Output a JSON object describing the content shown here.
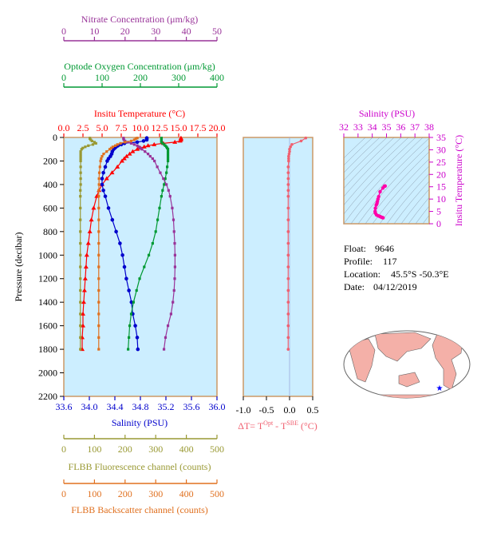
{
  "float_info": {
    "float_label": "Float:",
    "float_value": "9646",
    "profile_label": "Profile:",
    "profile_value": "117",
    "location_label": "Location:",
    "location_value": "45.5°S  -50.3°E",
    "date_label": "Date:",
    "date_value": "04/12/2019"
  },
  "colors": {
    "temperature": "#ff0000",
    "salinity": "#0000cc",
    "oxygen": "#009933",
    "nitrate": "#993399",
    "fluorescence": "#999933",
    "backscatter": "#e0701f",
    "delta_t": "#f06070",
    "ts_curve": "#ff00aa",
    "plot_bg": "#cceeff",
    "axis": "#cc9966"
  },
  "chart_data": [
    {
      "type": "line",
      "panel": "main_profiles",
      "ylabel": "Pressure (decibar)",
      "ylim": [
        2200,
        0
      ],
      "yticks": [
        0,
        200,
        400,
        600,
        800,
        1000,
        1200,
        1400,
        1600,
        1800,
        2000,
        2200
      ],
      "axes": {
        "nitrate": {
          "label": "Nitrate Concentration (μm/kg)",
          "range": [
            0,
            50
          ],
          "ticks": [
            0,
            10,
            20,
            30,
            40,
            50
          ]
        },
        "oxygen": {
          "label": "Optode Oxygen Concentration (μm/kg)",
          "range": [
            0,
            400
          ],
          "ticks": [
            0,
            100,
            200,
            300,
            400
          ]
        },
        "temperature": {
          "label": "Insitu Temperature (°C)",
          "range": [
            0,
            20
          ],
          "ticks": [
            "0.0",
            "2.5",
            "5.0",
            "7.5",
            "10.0",
            "12.5",
            "15.0",
            "17.5",
            "20.0"
          ]
        },
        "salinity": {
          "label": "Salinity (PSU)",
          "range": [
            33.6,
            36.0
          ],
          "ticks": [
            "33.6",
            "34.0",
            "34.4",
            "34.8",
            "35.2",
            "35.6",
            "36.0"
          ]
        },
        "fluorescence": {
          "label": "FLBB Fluorescence channel (counts)",
          "range": [
            0,
            500
          ],
          "ticks": [
            0,
            100,
            200,
            300,
            400,
            500
          ]
        },
        "backscatter": {
          "label": "FLBB Backscatter channel (counts)",
          "range": [
            0,
            500
          ],
          "ticks": [
            0,
            100,
            200,
            300,
            400,
            500
          ]
        }
      },
      "series": [
        {
          "key": "temperature",
          "pressure": [
            5,
            10,
            20,
            30,
            40,
            50,
            60,
            70,
            80,
            90,
            100,
            120,
            140,
            160,
            180,
            200,
            250,
            300,
            350,
            400,
            450,
            500,
            600,
            700,
            800,
            900,
            1000,
            1100,
            1200,
            1300,
            1400,
            1500,
            1600,
            1700,
            1800
          ],
          "values": [
            15.3,
            15.3,
            15.3,
            15.2,
            14.5,
            13.0,
            11.8,
            11.0,
            10.5,
            10.0,
            9.6,
            9.0,
            8.6,
            8.2,
            7.9,
            7.6,
            7.0,
            6.3,
            5.6,
            5.0,
            4.6,
            4.3,
            3.9,
            3.6,
            3.4,
            3.2,
            3.0,
            2.9,
            2.8,
            2.7,
            2.6,
            2.5,
            2.5,
            2.4,
            2.4
          ]
        },
        {
          "key": "salinity",
          "pressure": [
            5,
            10,
            20,
            30,
            40,
            50,
            60,
            70,
            80,
            90,
            100,
            120,
            140,
            160,
            180,
            200,
            250,
            300,
            350,
            400,
            450,
            500,
            600,
            700,
            800,
            900,
            1000,
            1100,
            1200,
            1300,
            1400,
            1500,
            1600,
            1700,
            1800
          ],
          "values": [
            34.9,
            34.9,
            34.9,
            34.85,
            34.75,
            34.55,
            34.5,
            34.45,
            34.42,
            34.4,
            34.38,
            34.36,
            34.35,
            34.33,
            34.3,
            34.28,
            34.25,
            34.22,
            34.2,
            34.2,
            34.22,
            34.25,
            34.3,
            34.36,
            34.42,
            34.48,
            34.52,
            34.55,
            34.58,
            34.62,
            34.66,
            34.68,
            34.72,
            34.75,
            34.76
          ]
        },
        {
          "key": "oxygen",
          "pressure": [
            5,
            10,
            20,
            30,
            40,
            50,
            60,
            70,
            80,
            90,
            100,
            120,
            140,
            160,
            180,
            200,
            250,
            300,
            350,
            400,
            450,
            500,
            600,
            700,
            800,
            900,
            1000,
            1100,
            1200,
            1300,
            1400,
            1500,
            1600,
            1700,
            1800
          ],
          "values": [
            255,
            255,
            255,
            255,
            255,
            258,
            262,
            265,
            268,
            270,
            272,
            272,
            272,
            272,
            272,
            272,
            270,
            268,
            265,
            262,
            258,
            255,
            250,
            245,
            240,
            232,
            222,
            210,
            198,
            190,
            182,
            176,
            172,
            170,
            168
          ]
        },
        {
          "key": "nitrate",
          "pressure": [
            5,
            10,
            20,
            30,
            40,
            50,
            60,
            70,
            80,
            90,
            100,
            120,
            140,
            160,
            180,
            200,
            250,
            300,
            350,
            400,
            450,
            500,
            600,
            700,
            800,
            900,
            1000,
            1100,
            1200,
            1300,
            1400,
            1500,
            1600,
            1700,
            1800
          ],
          "values": [
            19.5,
            19.5,
            19.6,
            20,
            21,
            22,
            23,
            24,
            24.5,
            25,
            25.5,
            26.5,
            27.5,
            28.2,
            29,
            29.6,
            30.5,
            31.5,
            32.5,
            33.5,
            34.2,
            34.7,
            35.4,
            35.8,
            36,
            36.2,
            36.3,
            36.3,
            36.2,
            36.0,
            35.6,
            35.0,
            34.0,
            33.2,
            32.7
          ]
        },
        {
          "key": "fluorescence",
          "pressure": [
            5,
            10,
            20,
            30,
            40,
            50,
            60,
            70,
            80,
            90,
            100,
            120,
            140,
            160,
            180,
            200,
            250,
            300,
            350,
            400,
            450,
            500,
            600,
            700,
            800,
            900,
            1000,
            1100,
            1200,
            1300,
            1400,
            1500,
            1600,
            1700,
            1800
          ],
          "values": [
            85,
            85,
            88,
            92,
            100,
            105,
            95,
            80,
            70,
            62,
            58,
            55,
            55,
            55,
            55,
            55,
            55,
            55,
            55,
            55,
            54,
            54,
            54,
            54,
            54,
            54,
            54,
            54,
            54,
            54,
            54,
            54,
            54,
            54,
            54
          ]
        },
        {
          "key": "backscatter",
          "pressure": [
            5,
            10,
            20,
            30,
            40,
            50,
            60,
            70,
            80,
            90,
            100,
            120,
            140,
            160,
            180,
            200,
            250,
            300,
            350,
            400,
            450,
            500,
            600,
            700,
            800,
            900,
            1000,
            1100,
            1200,
            1300,
            1400,
            1500,
            1600,
            1700,
            1800
          ],
          "values": [
            240,
            235,
            230,
            220,
            200,
            185,
            175,
            168,
            160,
            155,
            150,
            140,
            130,
            125,
            122,
            120,
            118,
            116,
            115,
            115,
            114,
            114,
            114,
            114,
            114,
            114,
            114,
            114,
            114,
            114,
            114,
            114,
            114,
            114,
            114
          ]
        }
      ]
    },
    {
      "type": "line",
      "panel": "delta_t",
      "xlabel_main": "ΔT= T",
      "xlabel_sup1": "Opt",
      "xlabel_mid": " - T",
      "xlabel_sup2": "SBE",
      "xlabel_end": " (°C)",
      "xlim": [
        -1.0,
        0.5
      ],
      "xticks": [
        "-1.0",
        "-0.5",
        "0.0",
        "0.5"
      ],
      "ylim": [
        2200,
        0
      ],
      "pressure": [
        5,
        30,
        60,
        80,
        100,
        120,
        140,
        160,
        180,
        200,
        250,
        300,
        350,
        400,
        450,
        500,
        600,
        700,
        800,
        900,
        1000,
        1100,
        1200,
        1300,
        1400,
        1500,
        1600,
        1700,
        1800
      ],
      "values": [
        0.35,
        0.25,
        0.05,
        0.02,
        0.0,
        0.0,
        -0.01,
        -0.02,
        -0.02,
        -0.02,
        -0.03,
        -0.03,
        -0.03,
        -0.03,
        -0.03,
        -0.03,
        -0.03,
        -0.03,
        -0.03,
        -0.03,
        -0.03,
        -0.03,
        -0.03,
        -0.03,
        -0.03,
        -0.03,
        -0.03,
        -0.03,
        -0.03
      ]
    },
    {
      "type": "scatter",
      "panel": "ts_diagram",
      "title": "Salinity (PSU)",
      "ylabel": "Insitu Temperature (°C)",
      "xlim": [
        32,
        38
      ],
      "xticks": [
        32,
        33,
        34,
        35,
        36,
        37,
        38
      ],
      "ylim": [
        0,
        35
      ],
      "yticks": [
        0,
        5,
        10,
        15,
        20,
        25,
        30,
        35
      ],
      "salinity": [
        34.9,
        34.9,
        34.85,
        34.75,
        34.55,
        34.45,
        34.4,
        34.36,
        34.33,
        34.28,
        34.22,
        34.2,
        34.22,
        34.3,
        34.42,
        34.52,
        34.58,
        34.66,
        34.72,
        34.76
      ],
      "temperature": [
        15.3,
        15.3,
        15.2,
        14.5,
        13.0,
        11.0,
        10.0,
        9.0,
        8.2,
        7.6,
        6.3,
        5.0,
        4.3,
        3.6,
        3.2,
        3.0,
        2.8,
        2.6,
        2.5,
        2.4
      ]
    }
  ]
}
